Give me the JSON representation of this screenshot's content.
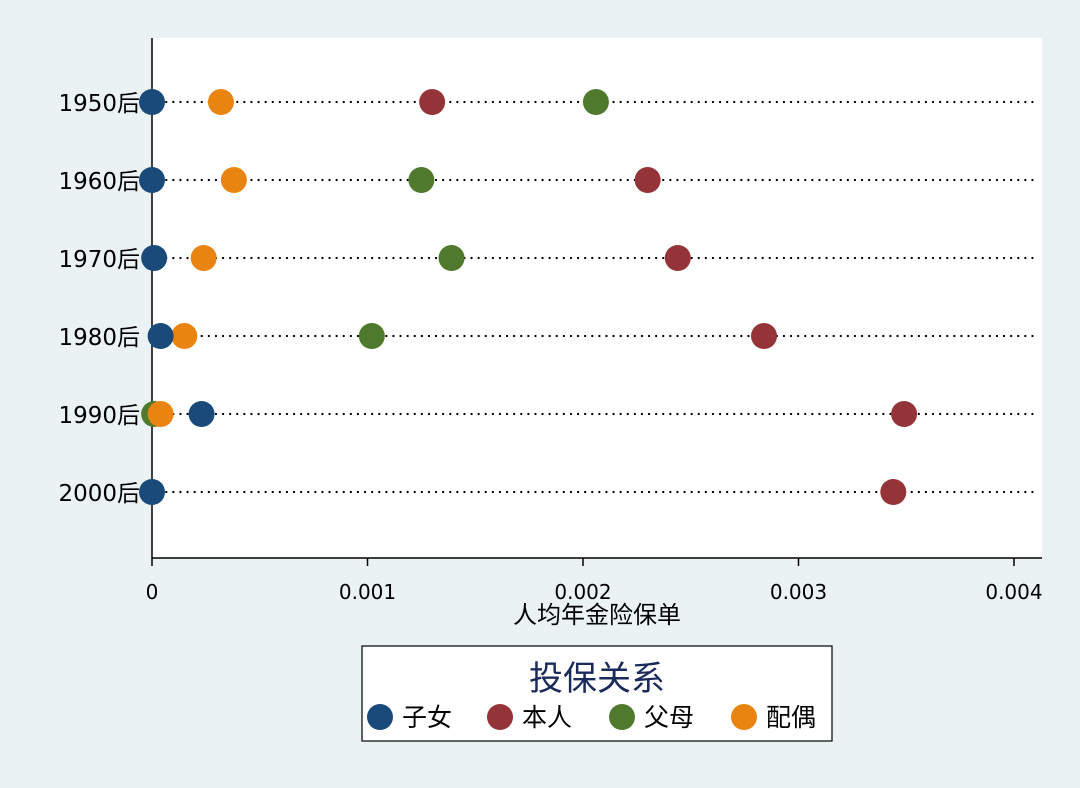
{
  "chart_data": {
    "type": "scatter",
    "categories": [
      "1950后",
      "1960后",
      "1970后",
      "1980后",
      "1990后",
      "2000后"
    ],
    "x_ticks": [
      0,
      0.001,
      0.002,
      0.003,
      0.004
    ],
    "x_tick_labels": [
      "0",
      "0.001",
      "0.002",
      "0.003",
      "0.004"
    ],
    "xlim": [
      0,
      0.00413
    ],
    "xlabel": "人均年金险保单",
    "grid": false,
    "legend": {
      "title": "投保关系",
      "placement": "bottom",
      "items": [
        "子女",
        "本人",
        "父母",
        "配偶"
      ]
    },
    "series": [
      {
        "name": "子女",
        "color": "#1a4a7a",
        "values": [
          0.0,
          0.0,
          1e-05,
          4e-05,
          0.00023,
          0.0
        ]
      },
      {
        "name": "本人",
        "color": "#943439",
        "values": [
          0.0013,
          0.0023,
          0.00244,
          0.00284,
          0.00349,
          0.00344
        ]
      },
      {
        "name": "父母",
        "color": "#4f7a2d",
        "values": [
          0.00206,
          0.00125,
          0.00139,
          0.00102,
          1e-05,
          null
        ]
      },
      {
        "name": "配偶",
        "color": "#e8840f",
        "values": [
          0.00032,
          0.00038,
          0.00024,
          0.00015,
          4e-05,
          null
        ]
      }
    ]
  }
}
